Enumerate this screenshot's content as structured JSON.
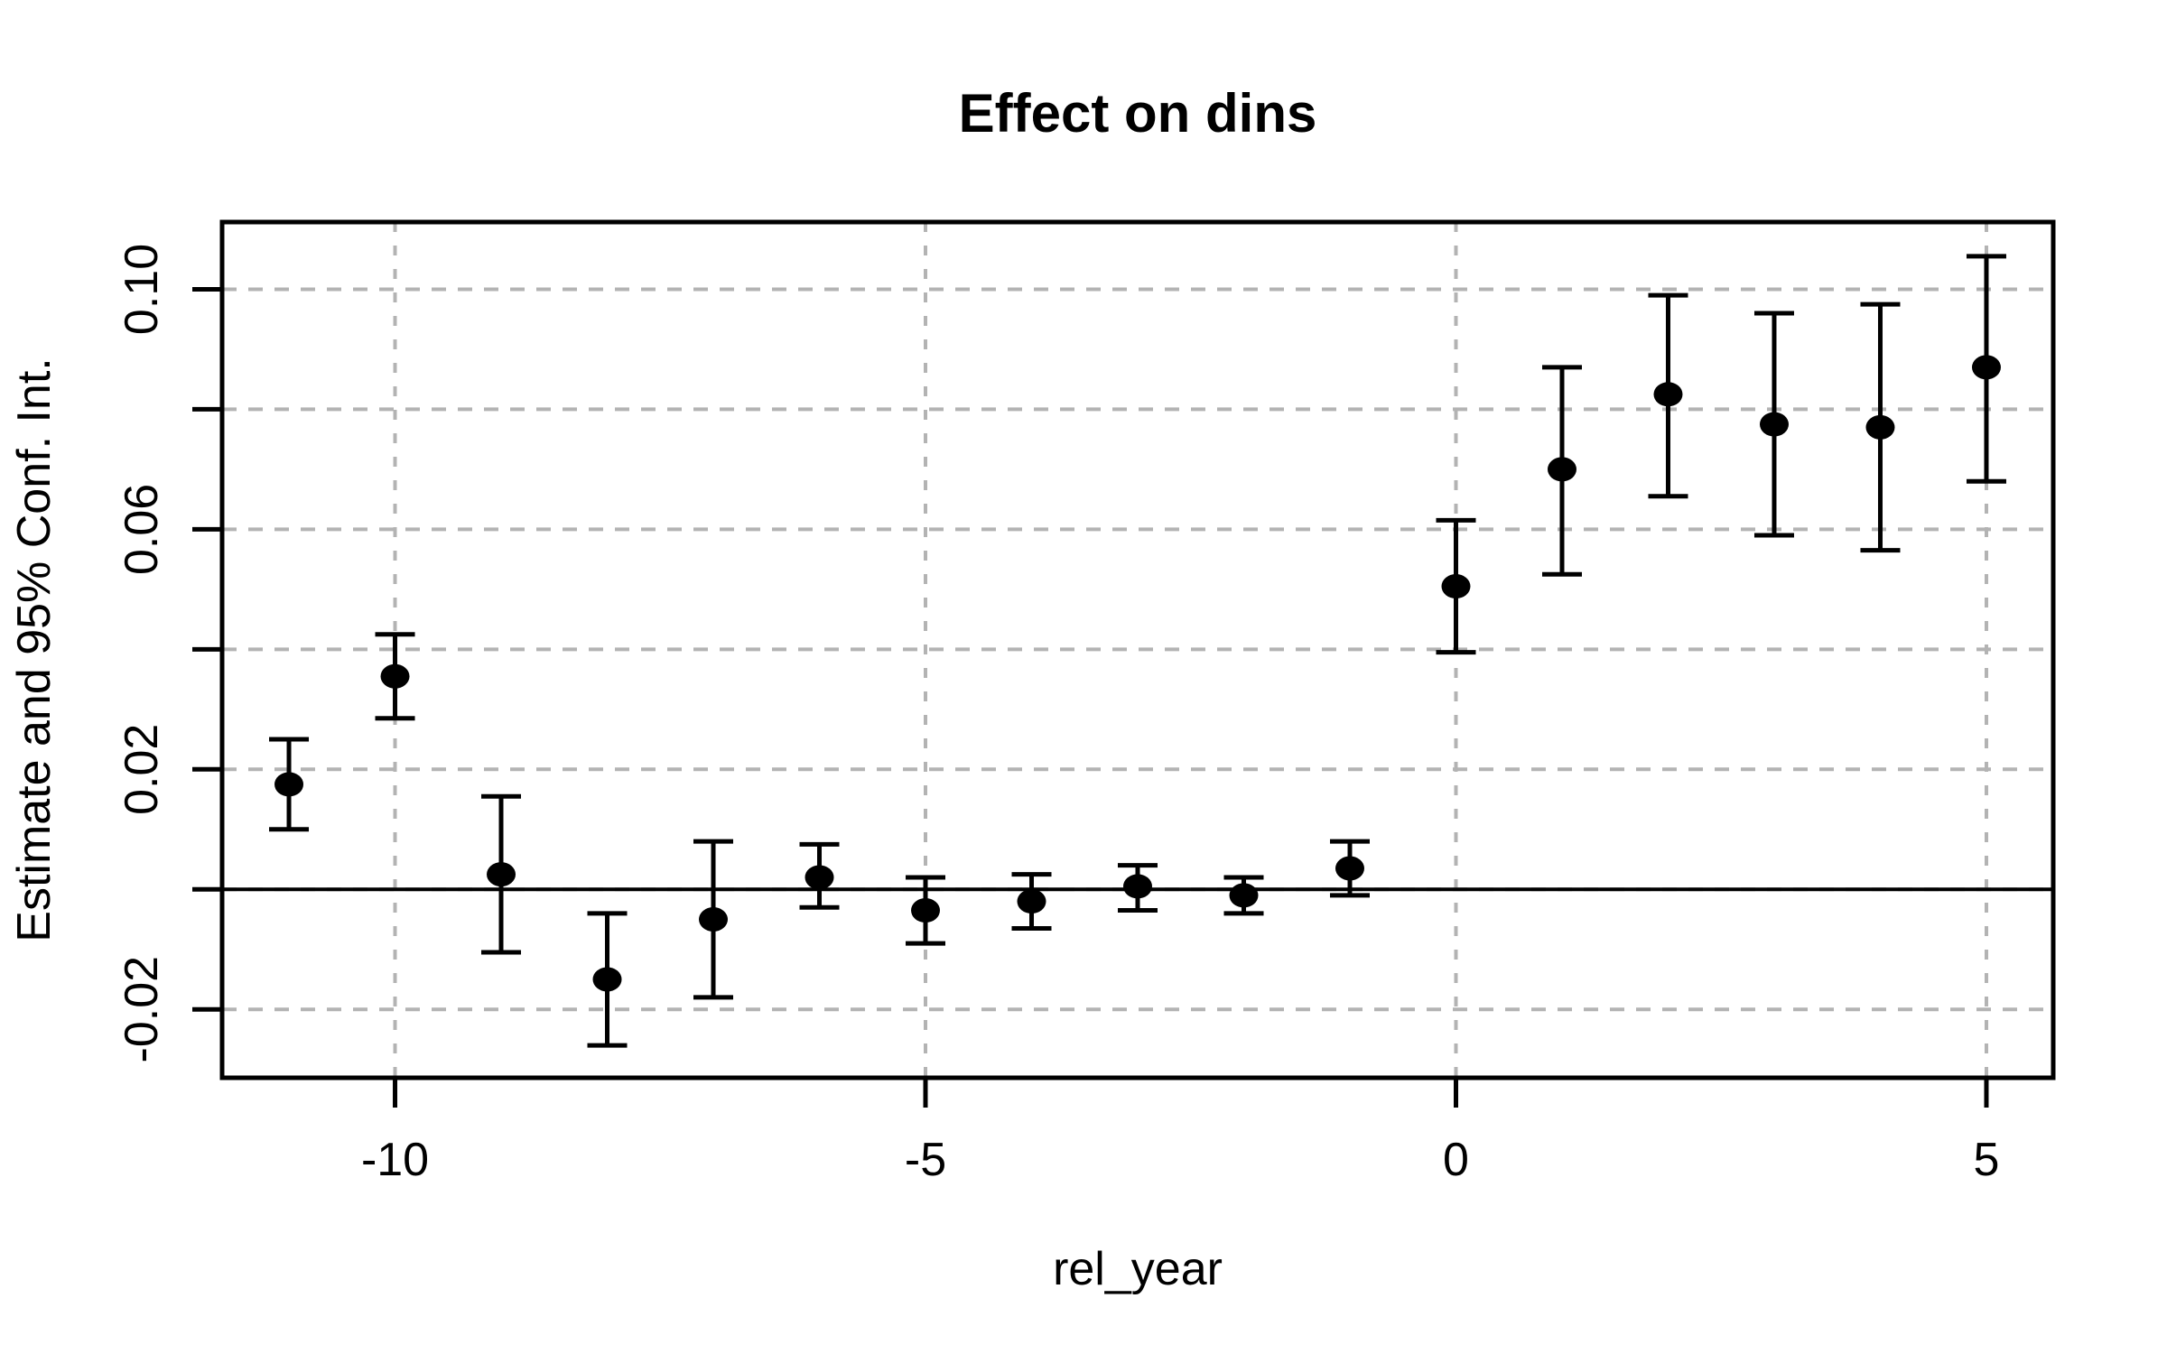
{
  "title": "Effect on dins",
  "axis": {
    "x_label": "rel_year",
    "y_label": "Estimate and 95% Conf. Int."
  },
  "colors": {
    "point": "#000000",
    "error_bar": "#000000",
    "axis": "#000000",
    "grid": "#b3b3b3",
    "zero_line": "#000000",
    "background": "#ffffff"
  },
  "chart_data": {
    "type": "scatter",
    "subtype": "point-estimates-with-error-bars",
    "title": "Effect on dins",
    "xlabel": "rel_year",
    "ylabel": "Estimate and 95% Conf. Int.",
    "x": [
      -11,
      -10,
      -9,
      -8,
      -7,
      -6,
      -5,
      -4,
      -3,
      -2,
      -1,
      0,
      1,
      2,
      3,
      4,
      5
    ],
    "series": [
      {
        "name": "estimate",
        "values": [
          0.0175,
          0.0355,
          0.0025,
          -0.015,
          -0.005,
          0.002,
          -0.0035,
          -0.002,
          0.0005,
          -0.001,
          0.0035,
          0.0505,
          0.07,
          0.0825,
          0.0775,
          0.077,
          0.087
        ]
      },
      {
        "name": "ci_lower_95",
        "values": [
          0.01,
          0.0285,
          -0.0105,
          -0.026,
          -0.018,
          -0.003,
          -0.009,
          -0.0065,
          -0.0035,
          -0.004,
          -0.001,
          0.0395,
          0.0525,
          0.0655,
          0.059,
          0.0565,
          0.068
        ]
      },
      {
        "name": "ci_upper_95",
        "values": [
          0.025,
          0.0425,
          0.0155,
          -0.004,
          0.008,
          0.0075,
          0.002,
          0.0025,
          0.004,
          0.002,
          0.008,
          0.0615,
          0.087,
          0.099,
          0.096,
          0.0975,
          0.1055
        ]
      }
    ],
    "x_ticks": [
      {
        "value": -10,
        "label": "-10"
      },
      {
        "value": -5,
        "label": "-5"
      },
      {
        "value": 0,
        "label": "0"
      },
      {
        "value": 5,
        "label": "5"
      }
    ],
    "y_ticks": [
      {
        "value": -0.02,
        "label": "-0.02"
      },
      {
        "value": 0,
        "label": ""
      },
      {
        "value": 0.02,
        "label": "0.02"
      },
      {
        "value": 0.04,
        "label": ""
      },
      {
        "value": 0.06,
        "label": "0.06"
      },
      {
        "value": 0.08,
        "label": ""
      },
      {
        "value": 0.1,
        "label": "0.10"
      }
    ],
    "xlim": [
      -11.63,
      5.63
    ],
    "ylim": [
      -0.0314,
      0.1112
    ],
    "grid": true,
    "grid_style": "dashed",
    "zero_line": 0,
    "legend_position": "none",
    "error_bars": true
  }
}
